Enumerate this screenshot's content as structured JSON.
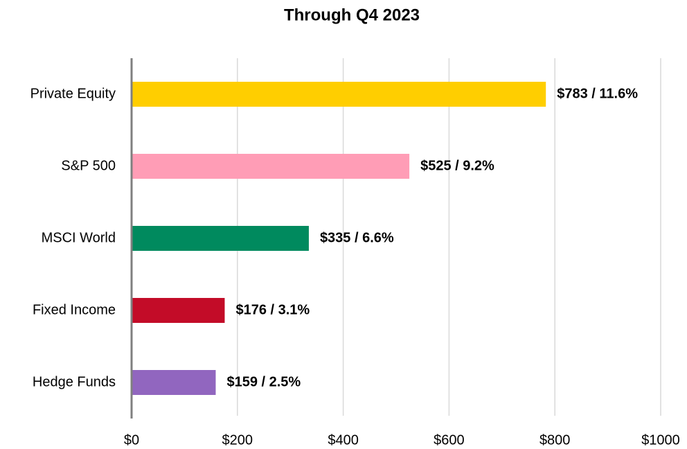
{
  "chart_data": {
    "type": "hbar",
    "title": "Through Q4 2023",
    "categories": [
      "Private Equity",
      "S&P 500",
      "MSCI World",
      "Fixed Income",
      "Hedge Funds"
    ],
    "values": [
      783,
      525,
      335,
      176,
      159
    ],
    "value_labels": [
      "$783 / 11.6%",
      "$525 / 9.2%",
      "$335 / 6.6%",
      "$176 / 3.1%",
      "$159 / 2.5%"
    ],
    "colors": [
      "#ffce00",
      "#ff9db6",
      "#008a5e",
      "#c30c28",
      "#9166bf"
    ],
    "xlim": [
      0,
      1000
    ],
    "xticks": [
      {
        "value": 0,
        "label": "$0"
      },
      {
        "value": 200,
        "label": "$200"
      },
      {
        "value": 400,
        "label": "$400"
      },
      {
        "value": 600,
        "label": "$600"
      },
      {
        "value": 800,
        "label": "$800"
      },
      {
        "value": 1000,
        "label": "$1000"
      }
    ],
    "grid": true
  }
}
